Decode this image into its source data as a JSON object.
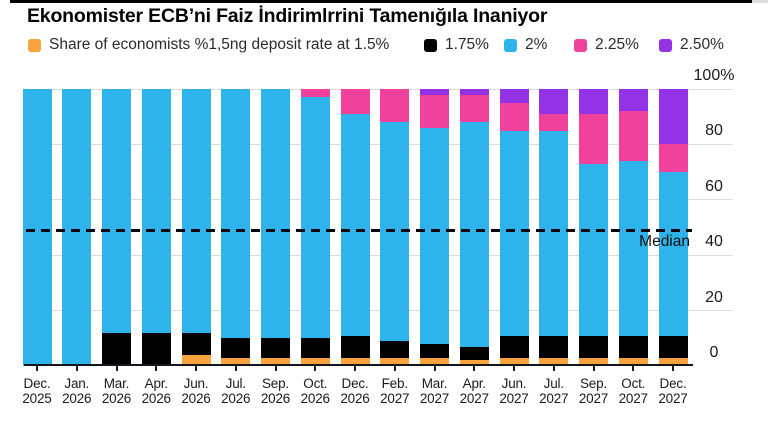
{
  "page": {
    "title": "Ekonomister ECB’ni Faiz İndirimlrrini Tamenığıla Inaniyor"
  },
  "legend": {
    "items": [
      {
        "label": "Share of economists %1,5ng deposit rate at 1.5%",
        "color": "#F7A23C"
      },
      {
        "label": "1.75%",
        "color": "#000000"
      },
      {
        "label": "2%",
        "color": "#2EB3EA"
      },
      {
        "label": "2.25%",
        "color": "#F0419D"
      },
      {
        "label": "2.50%",
        "color": "#9432E6"
      }
    ]
  },
  "chart_data": {
    "type": "bar",
    "stacked": true,
    "title": "Ekonomister ECB’ni Faiz İndirimlrrini Tamenığıla Inaniyor",
    "xlabel": "",
    "ylabel": "",
    "ylim": [
      0,
      100
    ],
    "grid": "horizontal",
    "legend_position": "top",
    "categories": [
      {
        "month": "Dec.",
        "year": "2025"
      },
      {
        "month": "Jan.",
        "year": "2026"
      },
      {
        "month": "Mar.",
        "year": "2026"
      },
      {
        "month": "Apr.",
        "year": "2026"
      },
      {
        "month": "Jun.",
        "year": "2026"
      },
      {
        "month": "Jul.",
        "year": "2026"
      },
      {
        "month": "Sep.",
        "year": "2026"
      },
      {
        "month": "Oct.",
        "year": "2026"
      },
      {
        "month": "Dec.",
        "year": "2026"
      },
      {
        "month": "Feb.",
        "year": "2027"
      },
      {
        "month": "Mar.",
        "year": "2027"
      },
      {
        "month": "Apr.",
        "year": "2027"
      },
      {
        "month": "Jun.",
        "year": "2027"
      },
      {
        "month": "Jul.",
        "year": "2027"
      },
      {
        "month": "Sep.",
        "year": "2027"
      },
      {
        "month": "Oct.",
        "year": "2027"
      },
      {
        "month": "Dec.",
        "year": "2027"
      }
    ],
    "series": [
      {
        "name": "1.5%",
        "color": "#F7A23C",
        "values": [
          0,
          0,
          0,
          0,
          4,
          3,
          3,
          3,
          3,
          3,
          3,
          2,
          3,
          3,
          3,
          3,
          3
        ]
      },
      {
        "name": "1.75%",
        "color": "#000000",
        "values": [
          0,
          0,
          12,
          12,
          8,
          7,
          7,
          7,
          8,
          6,
          5,
          5,
          8,
          8,
          8,
          8,
          8
        ]
      },
      {
        "name": "2%",
        "color": "#2EB3EA",
        "values": [
          100,
          100,
          88,
          88,
          88,
          90,
          90,
          87,
          80,
          79,
          78,
          81,
          74,
          74,
          62,
          63,
          59
        ]
      },
      {
        "name": "2.25%",
        "color": "#F0419D",
        "values": [
          0,
          0,
          0,
          0,
          0,
          0,
          0,
          3,
          9,
          12,
          12,
          10,
          10,
          6,
          18,
          18,
          10
        ]
      },
      {
        "name": "2.50%",
        "color": "#9432E6",
        "values": [
          0,
          0,
          0,
          0,
          0,
          0,
          0,
          0,
          0,
          0,
          2,
          2,
          5,
          9,
          9,
          8,
          20
        ]
      }
    ],
    "yticks": [
      {
        "value": 0,
        "label": "0"
      },
      {
        "value": 20,
        "label": "20"
      },
      {
        "value": 40,
        "label": "40"
      },
      {
        "value": 60,
        "label": "60"
      },
      {
        "value": 80,
        "label": "80"
      },
      {
        "value": 100,
        "label": "100%"
      }
    ],
    "median_line": {
      "value": 49,
      "label": "Median"
    }
  }
}
